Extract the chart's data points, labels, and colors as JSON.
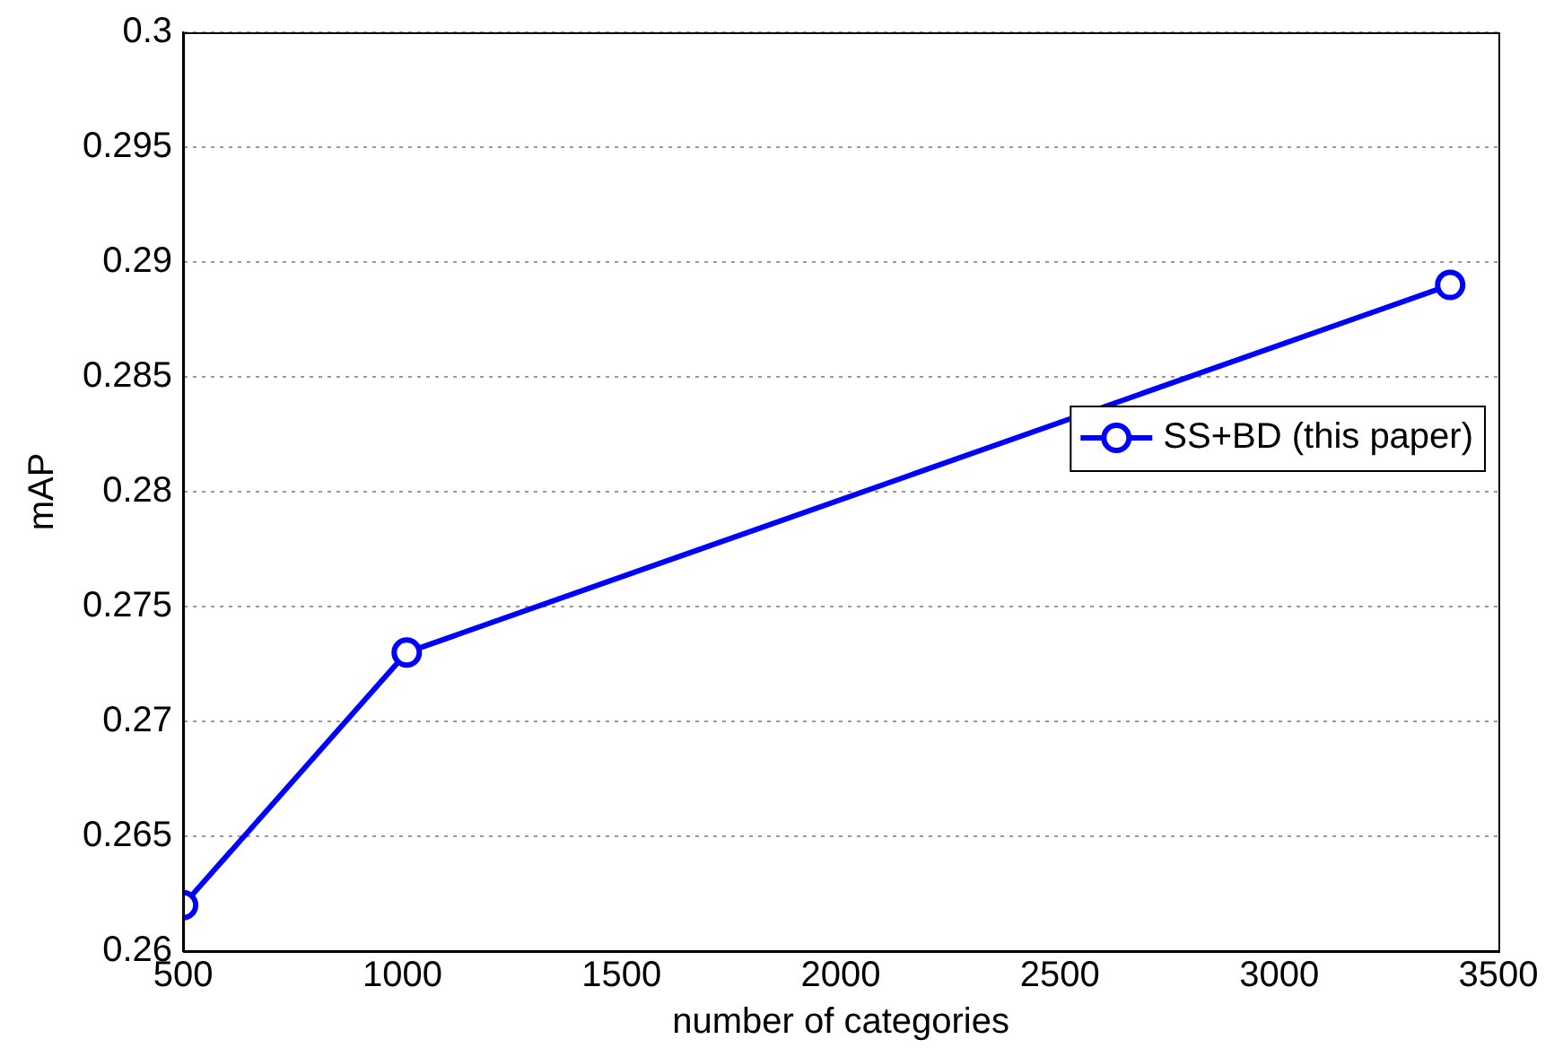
{
  "chart_data": {
    "type": "line",
    "xlabel": "number of categories",
    "ylabel": "mAP",
    "x": [
      500,
      1010,
      3390
    ],
    "series": [
      {
        "name": "SS+BD (this paper)",
        "color": "#0000ff",
        "values": [
          0.262,
          0.273,
          0.289
        ]
      }
    ],
    "xlim": [
      500,
      3500
    ],
    "xticks": [
      500,
      1000,
      1500,
      2000,
      2500,
      3000,
      3500
    ],
    "ylim": [
      0.26,
      0.3
    ],
    "yticks": [
      0.26,
      0.265,
      0.27,
      0.275,
      0.28,
      0.285,
      0.29,
      0.295,
      0.3
    ],
    "grid": "y",
    "legend": "right",
    "marker": "circle",
    "line_style": "solid"
  }
}
